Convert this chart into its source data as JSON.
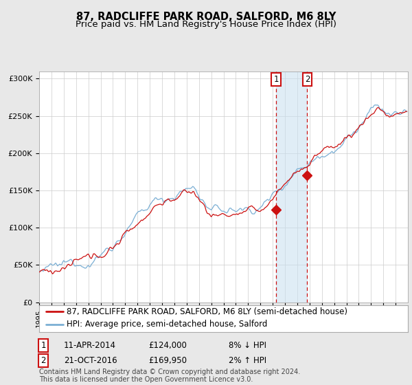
{
  "title": "87, RADCLIFFE PARK ROAD, SALFORD, M6 8LY",
  "subtitle": "Price paid vs. HM Land Registry's House Price Index (HPI)",
  "ylim": [
    0,
    310000
  ],
  "yticks": [
    0,
    50000,
    100000,
    150000,
    200000,
    250000,
    300000
  ],
  "ytick_labels": [
    "£0",
    "£50K",
    "£100K",
    "£150K",
    "£200K",
    "£250K",
    "£300K"
  ],
  "hpi_color": "#7bafd4",
  "price_color": "#cc1111",
  "background_color": "#e8e8e8",
  "plot_bg_color": "#ffffff",
  "grid_color": "#cccccc",
  "sale1_date_num": 2014.27,
  "sale1_price": 124000,
  "sale2_date_num": 2016.81,
  "sale2_price": 169950,
  "legend_label_price": "87, RADCLIFFE PARK ROAD, SALFORD, M6 8LY (semi-detached house)",
  "legend_label_hpi": "HPI: Average price, semi-detached house, Salford",
  "footnote": "Contains HM Land Registry data © Crown copyright and database right 2024.\nThis data is licensed under the Open Government Licence v3.0.",
  "title_fontsize": 10.5,
  "subtitle_fontsize": 9.5,
  "tick_fontsize": 8,
  "legend_fontsize": 8.5,
  "annot_fontsize": 8.5,
  "footnote_fontsize": 7
}
